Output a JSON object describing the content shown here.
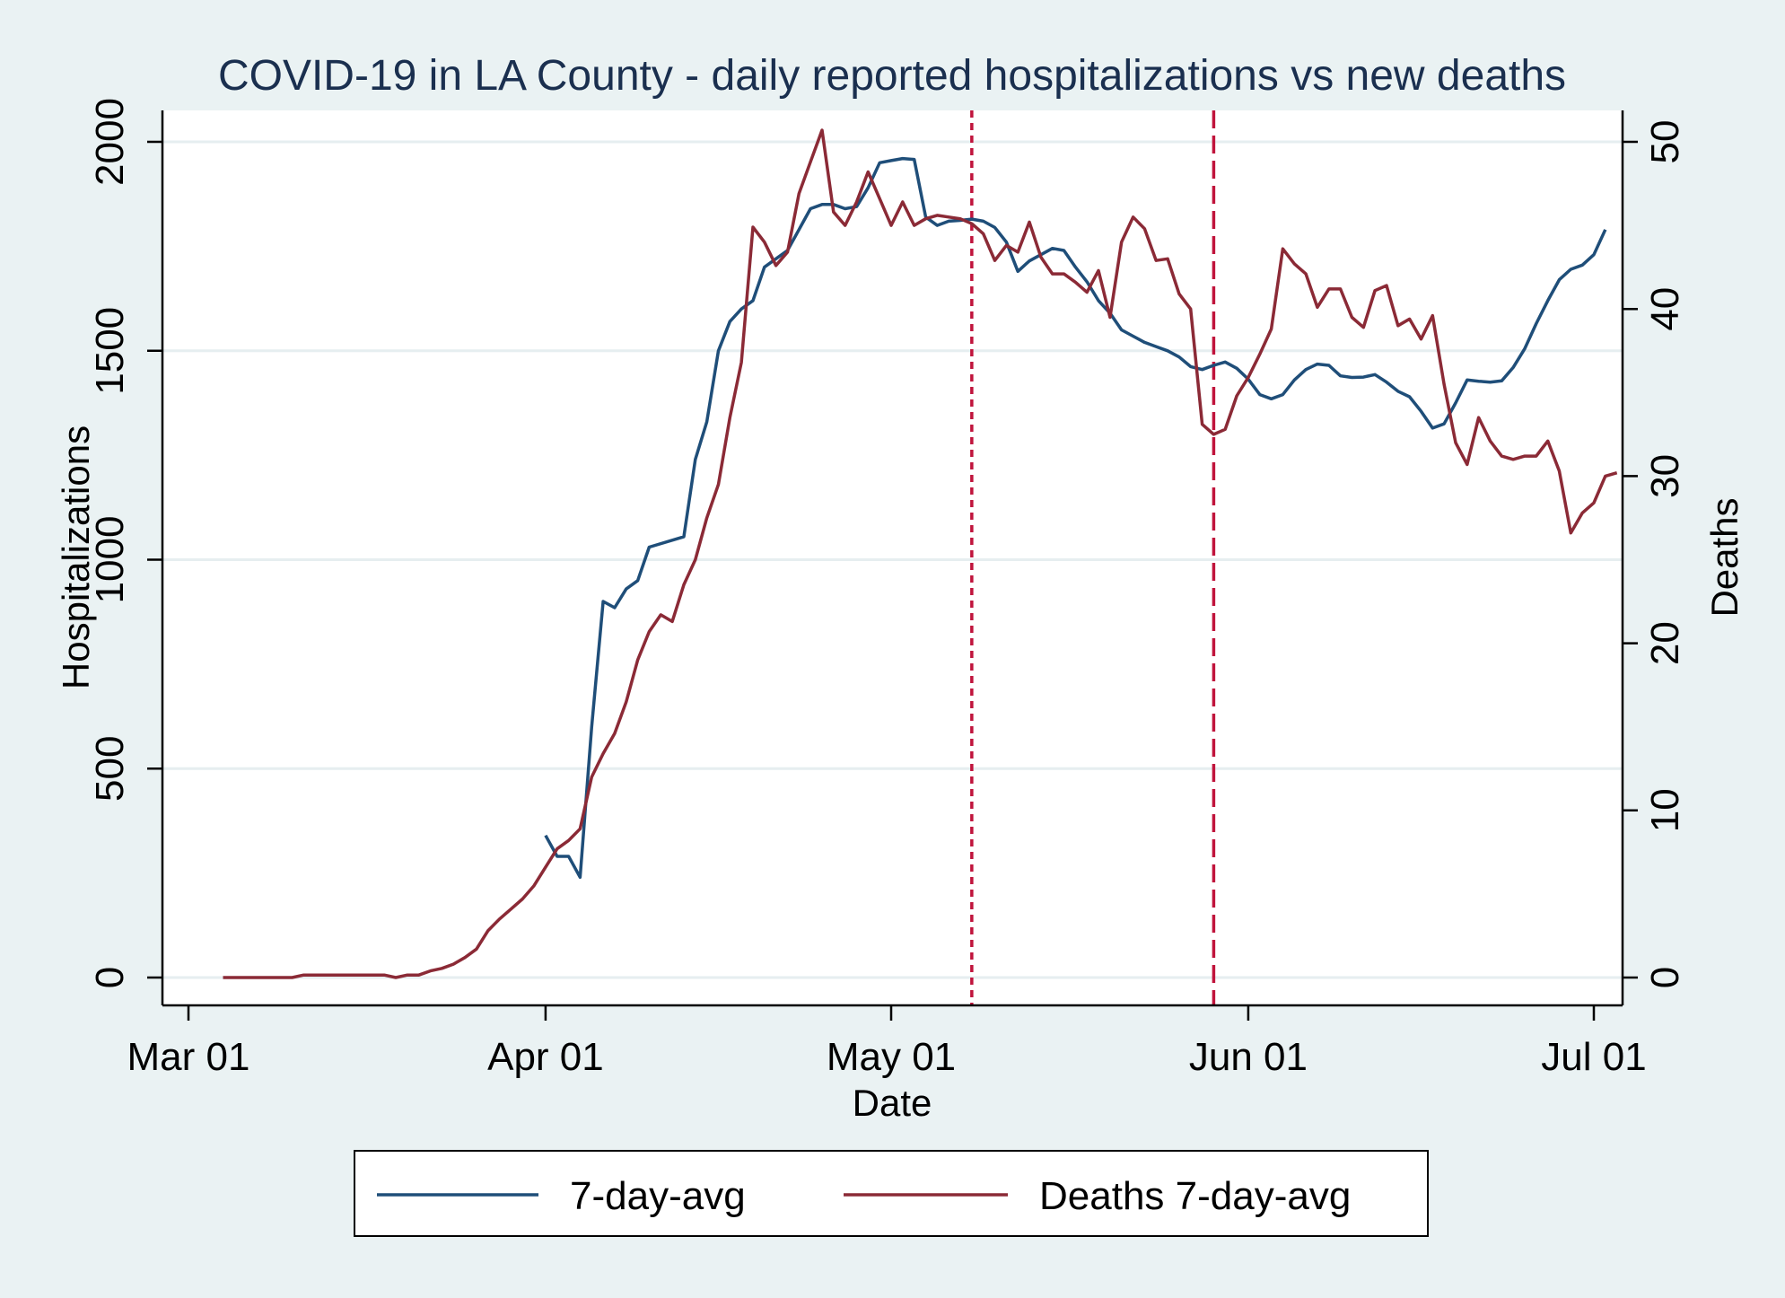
{
  "chart_data": {
    "type": "line",
    "title": "COVID-19 in LA County - daily reported hospitalizations vs new deaths",
    "xlabel": "Date",
    "ylabel_left": "Hospitalizations",
    "ylabel_right": "Deaths",
    "x_ticks": [
      "Mar 01",
      "Apr 01",
      "May 01",
      "Jun 01",
      "Jul 01"
    ],
    "y_left_ticks": [
      "0",
      "500",
      "1000",
      "1500",
      "2000"
    ],
    "y_right_ticks": [
      "0",
      "10",
      "20",
      "30",
      "40",
      "50"
    ],
    "y_left_range": [
      0,
      2000
    ],
    "y_right_range": [
      0,
      50
    ],
    "grid": true,
    "legend_position": "bottom",
    "reference_lines": [
      "2020-05-08",
      "2020-05-29"
    ],
    "colors": {
      "hospitalizations": "#1f4e79",
      "deaths": "#8b2a36",
      "reference": "#c0143c",
      "plot_bg": "#ffffff",
      "outer_bg": "#eaf2f3",
      "grid": "#e6eef0"
    },
    "series": [
      {
        "name": "7-day-avg",
        "axis": "left",
        "points": [
          [
            "2020-04-01",
            340
          ],
          [
            "2020-04-02",
            290
          ],
          [
            "2020-04-03",
            290
          ],
          [
            "2020-04-04",
            240
          ],
          [
            "2020-04-05",
            600
          ],
          [
            "2020-04-06",
            900
          ],
          [
            "2020-04-07",
            885
          ],
          [
            "2020-04-08",
            930
          ],
          [
            "2020-04-09",
            950
          ],
          [
            "2020-04-10",
            1030
          ],
          [
            "2020-04-13",
            1055
          ],
          [
            "2020-04-14",
            1240
          ],
          [
            "2020-04-15",
            1330
          ],
          [
            "2020-04-16",
            1500
          ],
          [
            "2020-04-17",
            1570
          ],
          [
            "2020-04-18",
            1600
          ],
          [
            "2020-04-19",
            1620
          ],
          [
            "2020-04-20",
            1700
          ],
          [
            "2020-04-21",
            1720
          ],
          [
            "2020-04-22",
            1740
          ],
          [
            "2020-04-23",
            1790
          ],
          [
            "2020-04-24",
            1840
          ],
          [
            "2020-04-25",
            1850
          ],
          [
            "2020-04-26",
            1850
          ],
          [
            "2020-04-27",
            1840
          ],
          [
            "2020-04-28",
            1845
          ],
          [
            "2020-04-29",
            1890
          ],
          [
            "2020-04-30",
            1950
          ],
          [
            "2020-05-01",
            1955
          ],
          [
            "2020-05-02",
            1960
          ],
          [
            "2020-05-03",
            1958
          ],
          [
            "2020-05-04",
            1820
          ],
          [
            "2020-05-05",
            1800
          ],
          [
            "2020-05-06",
            1810
          ],
          [
            "2020-05-07",
            1812
          ],
          [
            "2020-05-08",
            1815
          ],
          [
            "2020-05-09",
            1810
          ],
          [
            "2020-05-10",
            1795
          ],
          [
            "2020-05-11",
            1760
          ],
          [
            "2020-05-12",
            1690
          ],
          [
            "2020-05-13",
            1715
          ],
          [
            "2020-05-14",
            1730
          ],
          [
            "2020-05-15",
            1745
          ],
          [
            "2020-05-16",
            1740
          ],
          [
            "2020-05-17",
            1700
          ],
          [
            "2020-05-18",
            1665
          ],
          [
            "2020-05-19",
            1620
          ],
          [
            "2020-05-20",
            1590
          ],
          [
            "2020-05-21",
            1550
          ],
          [
            "2020-05-22",
            1535
          ],
          [
            "2020-05-23",
            1520
          ],
          [
            "2020-05-24",
            1510
          ],
          [
            "2020-05-25",
            1500
          ],
          [
            "2020-05-26",
            1485
          ],
          [
            "2020-05-27",
            1462
          ],
          [
            "2020-05-28",
            1455
          ],
          [
            "2020-05-29",
            1465
          ],
          [
            "2020-05-30",
            1473
          ],
          [
            "2020-05-31",
            1458
          ],
          [
            "2020-06-01",
            1432
          ],
          [
            "2020-06-02",
            1395
          ],
          [
            "2020-06-03",
            1385
          ],
          [
            "2020-06-04",
            1395
          ],
          [
            "2020-06-05",
            1430
          ],
          [
            "2020-06-06",
            1455
          ],
          [
            "2020-06-07",
            1468
          ],
          [
            "2020-06-08",
            1465
          ],
          [
            "2020-06-09",
            1440
          ],
          [
            "2020-06-10",
            1436
          ],
          [
            "2020-06-11",
            1437
          ],
          [
            "2020-06-12",
            1443
          ],
          [
            "2020-06-13",
            1425
          ],
          [
            "2020-06-14",
            1403
          ],
          [
            "2020-06-15",
            1390
          ],
          [
            "2020-06-16",
            1355
          ],
          [
            "2020-06-17",
            1315
          ],
          [
            "2020-06-18",
            1325
          ],
          [
            "2020-06-19",
            1375
          ],
          [
            "2020-06-20",
            1430
          ],
          [
            "2020-06-21",
            1427
          ],
          [
            "2020-06-22",
            1425
          ],
          [
            "2020-06-23",
            1428
          ],
          [
            "2020-06-24",
            1460
          ],
          [
            "2020-06-25",
            1505
          ],
          [
            "2020-06-26",
            1565
          ],
          [
            "2020-06-27",
            1620
          ],
          [
            "2020-06-28",
            1670
          ],
          [
            "2020-06-29",
            1695
          ],
          [
            "2020-06-30",
            1705
          ],
          [
            "2020-07-01",
            1730
          ],
          [
            "2020-07-02",
            1790
          ]
        ]
      },
      {
        "name": "Deaths 7-day-avg",
        "axis": "right",
        "points": [
          [
            "2020-03-04",
            0
          ],
          [
            "2020-03-05",
            0
          ],
          [
            "2020-03-06",
            0
          ],
          [
            "2020-03-07",
            0
          ],
          [
            "2020-03-08",
            0
          ],
          [
            "2020-03-09",
            0
          ],
          [
            "2020-03-10",
            0
          ],
          [
            "2020-03-11",
            0.15
          ],
          [
            "2020-03-12",
            0.15
          ],
          [
            "2020-03-13",
            0.15
          ],
          [
            "2020-03-14",
            0.15
          ],
          [
            "2020-03-15",
            0.15
          ],
          [
            "2020-03-16",
            0.15
          ],
          [
            "2020-03-17",
            0.15
          ],
          [
            "2020-03-18",
            0.15
          ],
          [
            "2020-03-19",
            0
          ],
          [
            "2020-03-20",
            0.15
          ],
          [
            "2020-03-21",
            0.15
          ],
          [
            "2020-03-22",
            0.4
          ],
          [
            "2020-03-23",
            0.55
          ],
          [
            "2020-03-24",
            0.8
          ],
          [
            "2020-03-25",
            1.2
          ],
          [
            "2020-03-26",
            1.7
          ],
          [
            "2020-03-27",
            2.8
          ],
          [
            "2020-03-28",
            3.5
          ],
          [
            "2020-03-29",
            4.1
          ],
          [
            "2020-03-30",
            4.7
          ],
          [
            "2020-03-31",
            5.5
          ],
          [
            "2020-04-01",
            6.6
          ],
          [
            "2020-04-02",
            7.7
          ],
          [
            "2020-04-03",
            8.2
          ],
          [
            "2020-04-04",
            8.9
          ],
          [
            "2020-04-05",
            12.0
          ],
          [
            "2020-04-06",
            13.4
          ],
          [
            "2020-04-07",
            14.6
          ],
          [
            "2020-04-08",
            16.5
          ],
          [
            "2020-04-09",
            19.0
          ],
          [
            "2020-04-10",
            20.7
          ],
          [
            "2020-04-11",
            21.7
          ],
          [
            "2020-04-12",
            21.3
          ],
          [
            "2020-04-13",
            23.5
          ],
          [
            "2020-04-14",
            25.0
          ],
          [
            "2020-04-15",
            27.5
          ],
          [
            "2020-04-16",
            29.5
          ],
          [
            "2020-04-17",
            33.5
          ],
          [
            "2020-04-18",
            36.8
          ],
          [
            "2020-04-19",
            44.9
          ],
          [
            "2020-04-20",
            44.0
          ],
          [
            "2020-04-21",
            42.6
          ],
          [
            "2020-04-22",
            43.4
          ],
          [
            "2020-04-23",
            46.9
          ],
          [
            "2020-04-24",
            48.8
          ],
          [
            "2020-04-25",
            50.7
          ],
          [
            "2020-04-26",
            45.8
          ],
          [
            "2020-04-27",
            45.0
          ],
          [
            "2020-04-28",
            46.4
          ],
          [
            "2020-04-29",
            48.2
          ],
          [
            "2020-04-30",
            46.6
          ],
          [
            "2020-05-01",
            45.0
          ],
          [
            "2020-05-02",
            46.4
          ],
          [
            "2020-05-03",
            45.0
          ],
          [
            "2020-05-04",
            45.4
          ],
          [
            "2020-05-05",
            45.6
          ],
          [
            "2020-05-06",
            45.5
          ],
          [
            "2020-05-07",
            45.4
          ],
          [
            "2020-05-08",
            45.1
          ],
          [
            "2020-05-09",
            44.5
          ],
          [
            "2020-05-10",
            42.9
          ],
          [
            "2020-05-11",
            43.8
          ],
          [
            "2020-05-12",
            43.4
          ],
          [
            "2020-05-13",
            45.2
          ],
          [
            "2020-05-14",
            43.1
          ],
          [
            "2020-05-15",
            42.1
          ],
          [
            "2020-05-16",
            42.1
          ],
          [
            "2020-05-17",
            41.6
          ],
          [
            "2020-05-18",
            41.0
          ],
          [
            "2020-05-19",
            42.3
          ],
          [
            "2020-05-20",
            39.5
          ],
          [
            "2020-05-21",
            44.0
          ],
          [
            "2020-05-22",
            45.5
          ],
          [
            "2020-05-23",
            44.8
          ],
          [
            "2020-05-24",
            42.9
          ],
          [
            "2020-05-25",
            43.0
          ],
          [
            "2020-05-26",
            40.9
          ],
          [
            "2020-05-27",
            40.0
          ],
          [
            "2020-05-28",
            33.1
          ],
          [
            "2020-05-29",
            32.5
          ],
          [
            "2020-05-30",
            32.8
          ],
          [
            "2020-05-31",
            34.8
          ],
          [
            "2020-06-01",
            35.9
          ],
          [
            "2020-06-02",
            37.3
          ],
          [
            "2020-06-03",
            38.8
          ],
          [
            "2020-06-04",
            43.6
          ],
          [
            "2020-06-05",
            42.7
          ],
          [
            "2020-06-06",
            42.1
          ],
          [
            "2020-06-07",
            40.1
          ],
          [
            "2020-06-08",
            41.2
          ],
          [
            "2020-06-09",
            41.2
          ],
          [
            "2020-06-10",
            39.5
          ],
          [
            "2020-06-11",
            38.9
          ],
          [
            "2020-06-12",
            41.1
          ],
          [
            "2020-06-13",
            41.4
          ],
          [
            "2020-06-14",
            39.0
          ],
          [
            "2020-06-15",
            39.4
          ],
          [
            "2020-06-16",
            38.2
          ],
          [
            "2020-06-17",
            39.6
          ],
          [
            "2020-06-18",
            35.5
          ],
          [
            "2020-06-19",
            32.0
          ],
          [
            "2020-06-20",
            30.7
          ],
          [
            "2020-06-21",
            33.5
          ],
          [
            "2020-06-22",
            32.1
          ],
          [
            "2020-06-23",
            31.2
          ],
          [
            "2020-06-24",
            31.0
          ],
          [
            "2020-06-25",
            31.2
          ],
          [
            "2020-06-26",
            31.2
          ],
          [
            "2020-06-27",
            32.1
          ],
          [
            "2020-06-28",
            30.3
          ],
          [
            "2020-06-29",
            26.6
          ],
          [
            "2020-06-30",
            27.8
          ],
          [
            "2020-07-01",
            28.4
          ],
          [
            "2020-07-02",
            30.0
          ],
          [
            "2020-07-03",
            30.2
          ]
        ]
      }
    ]
  }
}
